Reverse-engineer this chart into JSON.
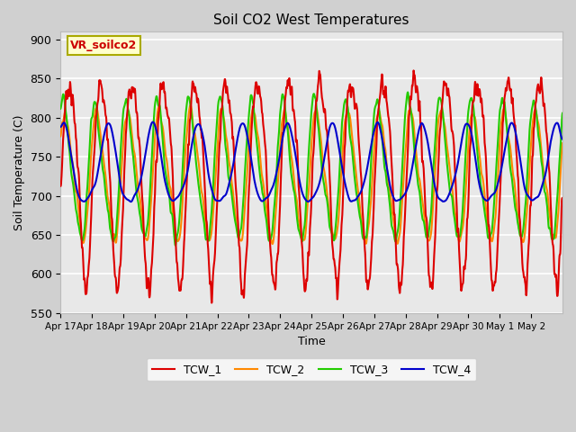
{
  "title": "Soil CO2 West Temperatures",
  "xlabel": "Time",
  "ylabel": "Soil Temperature (C)",
  "ylim": [
    550,
    910
  ],
  "yticks": [
    550,
    600,
    650,
    700,
    750,
    800,
    850,
    900
  ],
  "date_labels": [
    "Apr 17",
    "Apr 18",
    "Apr 19",
    "Apr 20",
    "Apr 21",
    "Apr 22",
    "Apr 23",
    "Apr 24",
    "Apr 25",
    "Apr 26",
    "Apr 27",
    "Apr 28",
    "Apr 29",
    "Apr 30",
    "May 1",
    "May 2"
  ],
  "annotation_text": "VR_soilco2",
  "legend_entries": [
    "TCW_1",
    "TCW_2",
    "TCW_3",
    "TCW_4"
  ],
  "colors": [
    "#dd0000",
    "#ff8800",
    "#22cc00",
    "#0000cc"
  ],
  "bg_color": "#e8e8e8",
  "grid_color": "#ffffff",
  "linewidth": 1.5,
  "days": 16
}
